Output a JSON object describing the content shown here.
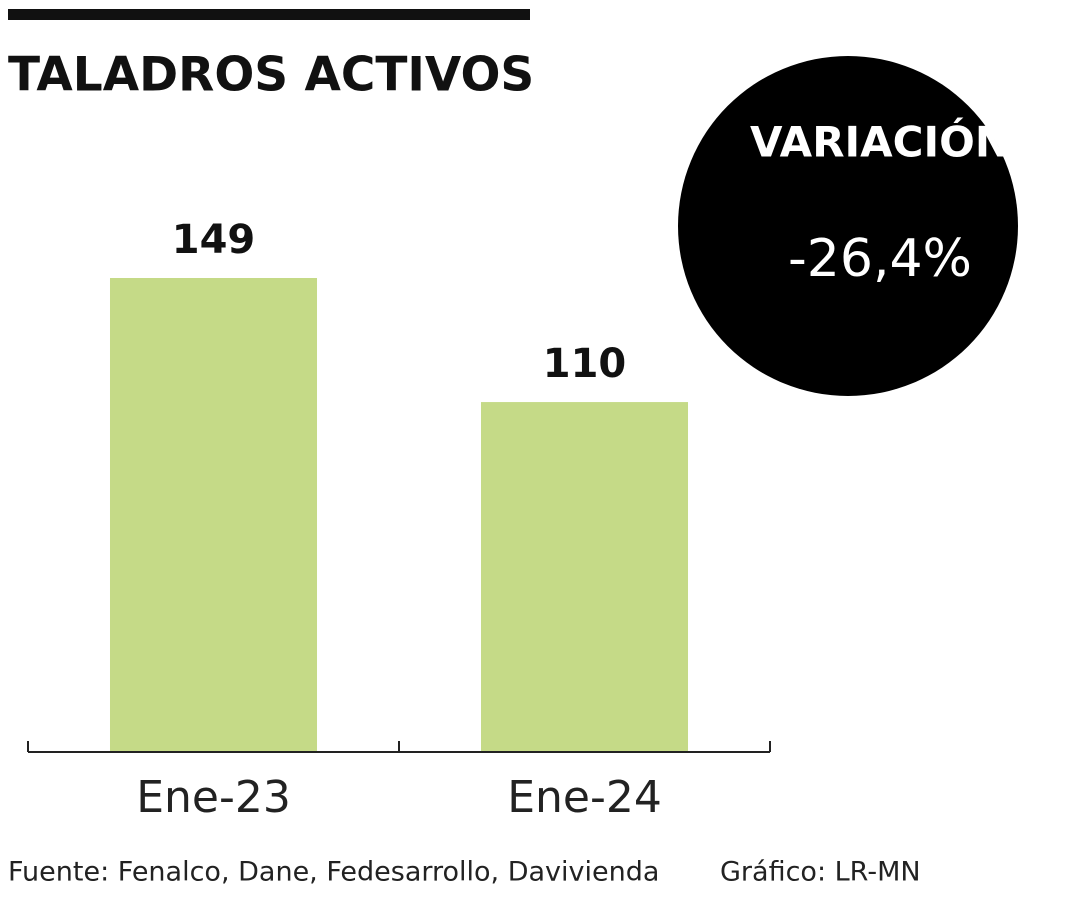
{
  "chart_data": {
    "type": "bar",
    "title": "TALADROS ACTIVOS",
    "categories": [
      "Ene-23",
      "Ene-24"
    ],
    "values": [
      149,
      110
    ],
    "color": "#c5da87",
    "ylim": [
      0,
      149
    ],
    "annotation": {
      "label": "VARIACIÓN",
      "text": "-26,4%"
    },
    "source": "Fuente: Fenalco, Dane, Fedesarrollo, Davivienda",
    "credit": "Gráfico: LR-MN"
  }
}
